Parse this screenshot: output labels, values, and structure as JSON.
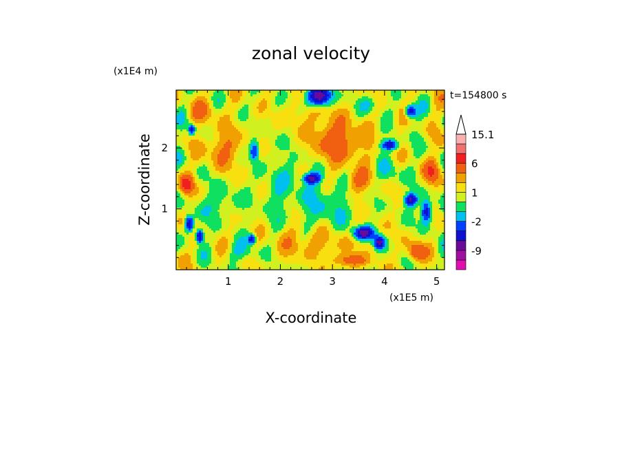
{
  "chart_data": {
    "type": "heatmap",
    "title": "zonal velocity",
    "xlabel": "X-coordinate",
    "ylabel": "Z-coordinate",
    "x_multiplier": "(x1E5 m)",
    "y_multiplier": "(x1E4 m)",
    "time_label": "t=154800 s",
    "xlim": [
      0,
      5.15
    ],
    "ylim": [
      0,
      2.95
    ],
    "x_ticks": [
      {
        "value": 1,
        "label": "1"
      },
      {
        "value": 2,
        "label": "2"
      },
      {
        "value": 3,
        "label": "3"
      },
      {
        "value": 4,
        "label": "4"
      },
      {
        "value": 5,
        "label": "5"
      }
    ],
    "y_ticks": [
      {
        "value": 1,
        "label": "1"
      },
      {
        "value": 2,
        "label": "2"
      }
    ],
    "colorbar": {
      "colors": [
        "#e010b0",
        "#a010a0",
        "#6a0a9a",
        "#1010d0",
        "#0040ff",
        "#00c0f0",
        "#10e060",
        "#d0f020",
        "#f8e010",
        "#f0a000",
        "#f06010",
        "#f02020",
        "#f07070",
        "#f8b0b0",
        "#ffffff"
      ],
      "labels": [
        {
          "value": "15.1",
          "level": 14
        },
        {
          "value": "6",
          "level": 11
        },
        {
          "value": "1",
          "level": 8
        },
        {
          "value": "-2",
          "level": 5
        },
        {
          "value": "-9",
          "level": 2
        }
      ]
    },
    "field_values": {
      "background": 0.5,
      "blobs": [
        {
          "x": 2.75,
          "z": 2.85,
          "v": -10,
          "rx": 0.22,
          "rz": 0.15
        },
        {
          "x": 2.2,
          "z": 1.6,
          "v": -1,
          "rx": 0.45,
          "rz": 0.45
        },
        {
          "x": 2.9,
          "z": 1.05,
          "v": -2,
          "rx": 0.5,
          "rz": 0.45
        },
        {
          "x": 1.9,
          "z": 1.15,
          "v": -1,
          "rx": 0.4,
          "rz": 0.5
        },
        {
          "x": 2.6,
          "z": 0.45,
          "v": 2,
          "rx": 0.8,
          "rz": 0.25
        },
        {
          "x": 3.1,
          "z": 2.1,
          "v": 4,
          "rx": 0.5,
          "rz": 0.35
        },
        {
          "x": 2.6,
          "z": 2.55,
          "v": 1,
          "rx": 0.5,
          "rz": 0.2
        },
        {
          "x": 0.25,
          "z": 0.75,
          "v": -9,
          "rx": 0.08,
          "rz": 0.12
        },
        {
          "x": 0.45,
          "z": 0.55,
          "v": -9,
          "rx": 0.07,
          "rz": 0.1
        },
        {
          "x": 1.45,
          "z": 0.5,
          "v": -7,
          "rx": 0.08,
          "rz": 0.08
        },
        {
          "x": 2.6,
          "z": 1.5,
          "v": -8,
          "rx": 0.15,
          "rz": 0.08
        },
        {
          "x": 1.5,
          "z": 1.95,
          "v": -6,
          "rx": 0.08,
          "rz": 0.15
        },
        {
          "x": 3.6,
          "z": 0.6,
          "v": -9,
          "rx": 0.2,
          "rz": 0.1
        },
        {
          "x": 3.9,
          "z": 0.45,
          "v": -9,
          "rx": 0.1,
          "rz": 0.1
        },
        {
          "x": 4.5,
          "z": 1.15,
          "v": -9,
          "rx": 0.12,
          "rz": 0.1
        },
        {
          "x": 4.8,
          "z": 0.95,
          "v": -8,
          "rx": 0.1,
          "rz": 0.18
        },
        {
          "x": 4.5,
          "z": 2.6,
          "v": -8,
          "rx": 0.1,
          "rz": 0.1
        },
        {
          "x": 4.1,
          "z": 2.05,
          "v": -8,
          "rx": 0.15,
          "rz": 0.08
        },
        {
          "x": 0.3,
          "z": 2.3,
          "v": -7,
          "rx": 0.06,
          "rz": 0.08
        },
        {
          "x": 0.2,
          "z": 1.4,
          "v": 6,
          "rx": 0.12,
          "rz": 0.15
        },
        {
          "x": 0.9,
          "z": 2.0,
          "v": 3,
          "rx": 0.3,
          "rz": 0.3
        },
        {
          "x": 0.8,
          "z": 1.1,
          "v": -2,
          "rx": 0.35,
          "rz": 0.25
        },
        {
          "x": 0.5,
          "z": 2.6,
          "v": 2,
          "rx": 0.3,
          "rz": 0.2
        },
        {
          "x": 1.3,
          "z": 0.3,
          "v": -2,
          "rx": 0.3,
          "rz": 0.15
        },
        {
          "x": 4.6,
          "z": 0.3,
          "v": 5,
          "rx": 0.15,
          "rz": 0.15
        },
        {
          "x": 4.9,
          "z": 1.6,
          "v": 4,
          "rx": 0.15,
          "rz": 0.2
        },
        {
          "x": 3.7,
          "z": 2.7,
          "v": -2,
          "rx": 0.2,
          "rz": 0.15
        },
        {
          "x": 3.5,
          "z": 1.45,
          "v": 3,
          "rx": 0.25,
          "rz": 0.2
        },
        {
          "x": 4.1,
          "z": 1.6,
          "v": -2,
          "rx": 0.2,
          "rz": 0.2
        },
        {
          "x": 3.35,
          "z": 0.15,
          "v": 4,
          "rx": 0.3,
          "rz": 0.1
        }
      ],
      "wave_amplitude": 2.2
    }
  }
}
